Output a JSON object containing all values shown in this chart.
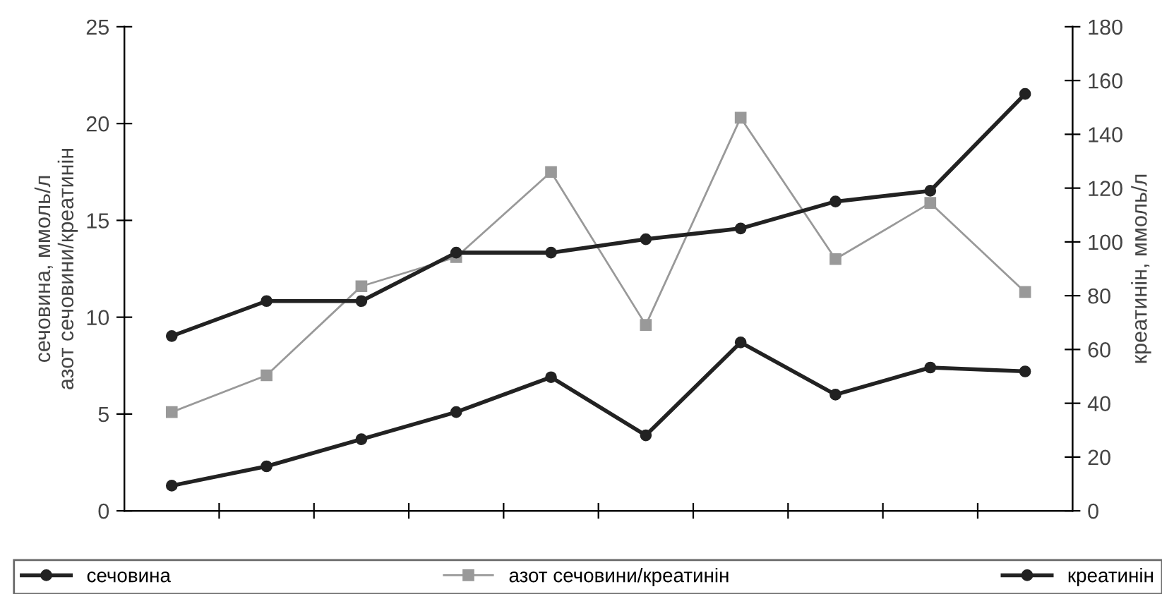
{
  "chart_data": {
    "type": "line",
    "ylabel": "сечовина, ммоль/л\nазот сечовини/креатинін",
    "y2label": "креатинін, ммоль/л",
    "categories": [
      null,
      null,
      null,
      null,
      null,
      null,
      null,
      null,
      null,
      null
    ],
    "series": [
      {
        "name": "сечовина",
        "color": "#222222",
        "marker": "circle",
        "values": [
          1.3,
          2.3,
          3.7,
          5.1,
          6.9,
          3.9,
          8.7,
          6.0,
          7.4,
          7.2
        ]
      },
      {
        "name": "азот сечовини/креатинін",
        "color": "#999999",
        "marker": "square",
        "values": [
          5.1,
          7.0,
          11.6,
          13.1,
          17.5,
          9.6,
          20.3,
          13.0,
          15.9,
          11.3
        ]
      },
      {
        "name": "креатинін",
        "color": "#222222",
        "marker": "circle",
        "axis": "y2",
        "values": [
          65,
          78,
          78,
          96,
          96,
          101,
          105,
          115,
          119,
          155
        ]
      }
    ],
    "ylim": [
      0,
      25
    ],
    "yticks": [
      0,
      5,
      10,
      15,
      20,
      25
    ],
    "y2lim": [
      0,
      180
    ],
    "y2ticks": [
      0,
      20,
      40,
      60,
      80,
      100,
      120,
      140,
      160,
      180
    ],
    "grid": false,
    "legend": "bottom",
    "tick_labels": "y",
    "line_style": "solid"
  }
}
